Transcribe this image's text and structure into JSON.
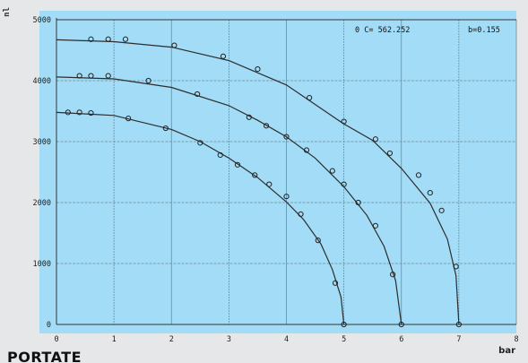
{
  "caption": "PORTATE",
  "chart_data": {
    "type": "line",
    "xlabel": "bar",
    "ylabel": "nl",
    "xlim": [
      0,
      8
    ],
    "ylim": [
      0,
      5000
    ],
    "x_ticks": [
      "0",
      "1",
      "2",
      "3",
      "4",
      "5",
      "6",
      "7",
      "8"
    ],
    "y_ticks": [
      "0",
      "1000",
      "2000",
      "3000",
      "4000",
      "5000"
    ],
    "grid": true,
    "annotations": [
      "0 C= 562.252",
      "b=0.155"
    ],
    "series": [
      {
        "points": [
          [
            0.6,
            4680
          ],
          [
            0.9,
            4680
          ],
          [
            1.2,
            4680
          ],
          [
            2.05,
            4580
          ],
          [
            2.9,
            4400
          ],
          [
            3.5,
            4190
          ],
          [
            4.4,
            3720
          ],
          [
            5.0,
            3330
          ],
          [
            5.55,
            3040
          ],
          [
            5.8,
            2810
          ],
          [
            6.3,
            2450
          ],
          [
            6.5,
            2160
          ],
          [
            6.7,
            1870
          ],
          [
            6.95,
            950
          ],
          [
            7.0,
            0
          ]
        ],
        "values": [
          [
            0,
            4670
          ],
          [
            1,
            4640
          ],
          [
            2,
            4550
          ],
          [
            3,
            4330
          ],
          [
            4,
            3930
          ],
          [
            5,
            3290
          ],
          [
            5.5,
            3020
          ],
          [
            6,
            2560
          ],
          [
            6.5,
            1990
          ],
          [
            6.8,
            1400
          ],
          [
            6.95,
            800
          ],
          [
            7,
            0
          ]
        ]
      },
      {
        "points": [
          [
            0.4,
            4080
          ],
          [
            0.6,
            4080
          ],
          [
            0.9,
            4080
          ],
          [
            1.6,
            4000
          ],
          [
            2.45,
            3780
          ],
          [
            3.35,
            3400
          ],
          [
            3.65,
            3260
          ],
          [
            4.0,
            3080
          ],
          [
            4.35,
            2860
          ],
          [
            4.8,
            2520
          ],
          [
            5.0,
            2300
          ],
          [
            5.25,
            2000
          ],
          [
            5.55,
            1620
          ],
          [
            5.85,
            820
          ],
          [
            6.0,
            0
          ]
        ],
        "values": [
          [
            0,
            4060
          ],
          [
            1,
            4030
          ],
          [
            2,
            3890
          ],
          [
            3,
            3590
          ],
          [
            3.5,
            3350
          ],
          [
            4,
            3080
          ],
          [
            4.5,
            2730
          ],
          [
            5,
            2260
          ],
          [
            5.4,
            1790
          ],
          [
            5.7,
            1280
          ],
          [
            5.9,
            720
          ],
          [
            6,
            0
          ]
        ]
      },
      {
        "points": [
          [
            0.2,
            3480
          ],
          [
            0.4,
            3480
          ],
          [
            0.6,
            3470
          ],
          [
            1.25,
            3380
          ],
          [
            1.9,
            3220
          ],
          [
            2.5,
            2980
          ],
          [
            2.85,
            2780
          ],
          [
            3.15,
            2620
          ],
          [
            3.45,
            2450
          ],
          [
            3.7,
            2300
          ],
          [
            4.0,
            2100
          ],
          [
            4.25,
            1810
          ],
          [
            4.55,
            1380
          ],
          [
            4.85,
            680
          ],
          [
            5.0,
            0
          ]
        ],
        "values": [
          [
            0,
            3480
          ],
          [
            1,
            3430
          ],
          [
            2,
            3200
          ],
          [
            2.5,
            3000
          ],
          [
            3,
            2730
          ],
          [
            3.5,
            2410
          ],
          [
            4,
            2010
          ],
          [
            4.3,
            1720
          ],
          [
            4.6,
            1320
          ],
          [
            4.8,
            900
          ],
          [
            4.95,
            450
          ],
          [
            5,
            0
          ]
        ]
      }
    ]
  }
}
